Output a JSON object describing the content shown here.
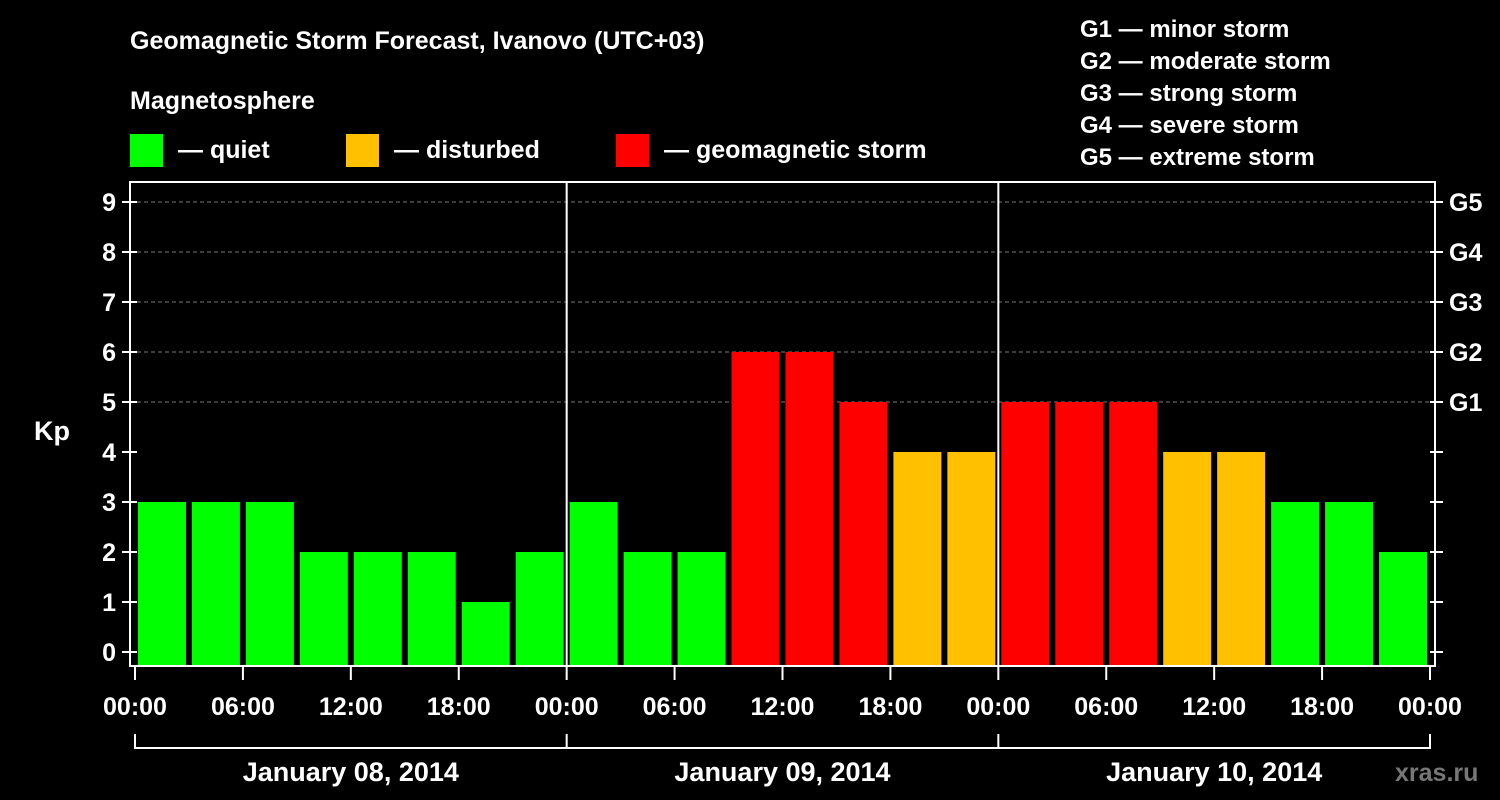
{
  "title": "Geomagnetic Storm Forecast, Ivanovo (UTC+03)",
  "legend": {
    "heading": "Magnetosphere",
    "items": [
      {
        "label": "— quiet",
        "color": "#00ff00"
      },
      {
        "label": "— disturbed",
        "color": "#ffc000"
      },
      {
        "label": "— geomagnetic storm",
        "color": "#ff0000"
      }
    ]
  },
  "storm_scale": [
    "G1 — minor storm",
    "G2 — moderate storm",
    "G3 — strong storm",
    "G4 — severe storm",
    "G5 — extreme storm"
  ],
  "watermark": "xras.ru",
  "chart_data": {
    "type": "bar",
    "ylabel": "Kp",
    "ylim": [
      0,
      9
    ],
    "yticks": [
      "0",
      "1",
      "2",
      "3",
      "4",
      "5",
      "6",
      "7",
      "8",
      "9"
    ],
    "right_ticks": [
      {
        "value": 5,
        "label": "G1"
      },
      {
        "value": 6,
        "label": "G2"
      },
      {
        "value": 7,
        "label": "G3"
      },
      {
        "value": 8,
        "label": "G4"
      },
      {
        "value": 9,
        "label": "G5"
      }
    ],
    "xticks": [
      "00:00",
      "06:00",
      "12:00",
      "18:00",
      "00:00",
      "06:00",
      "12:00",
      "18:00",
      "00:00",
      "06:00",
      "12:00",
      "18:00",
      "00:00"
    ],
    "days": [
      "January 08, 2014",
      "January 09, 2014",
      "January 10, 2014"
    ],
    "interval_hours": 3,
    "values": [
      3,
      3,
      3,
      2,
      2,
      2,
      1,
      2,
      3,
      2,
      2,
      6,
      6,
      5,
      4,
      4,
      5,
      5,
      5,
      4,
      4,
      3,
      3,
      2
    ],
    "levels": [
      "quiet",
      "quiet",
      "quiet",
      "quiet",
      "quiet",
      "quiet",
      "quiet",
      "quiet",
      "quiet",
      "quiet",
      "quiet",
      "storm",
      "storm",
      "storm",
      "disturbed",
      "disturbed",
      "storm",
      "storm",
      "storm",
      "disturbed",
      "disturbed",
      "quiet",
      "quiet",
      "quiet"
    ],
    "level_colors": {
      "quiet": "#00ff00",
      "disturbed": "#ffc000",
      "storm": "#ff0000"
    },
    "grid_lines_at": [
      5,
      6,
      7,
      8,
      9
    ]
  }
}
